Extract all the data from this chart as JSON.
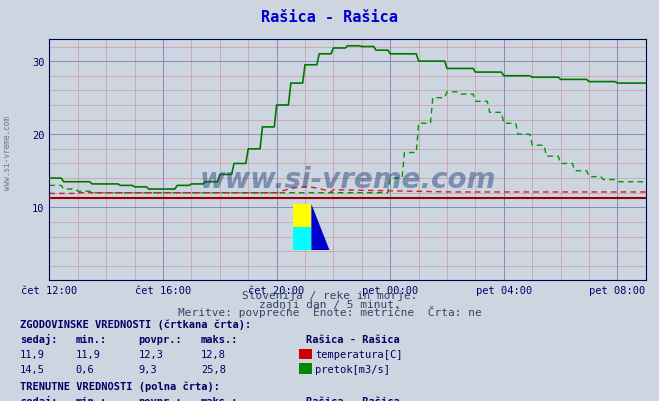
{
  "title": "Rašica - Rašica",
  "title_color": "#0000cc",
  "bg_color": "#ccd5e0",
  "plot_bg_color": "#ccd5e0",
  "xlabel_color": "#000066",
  "xtick_labels": [
    "čet 12:00",
    "čet 16:00",
    "čet 20:00",
    "pet 00:00",
    "pet 04:00",
    "pet 08:00"
  ],
  "xtick_positions": [
    0,
    4,
    8,
    12,
    16,
    20
  ],
  "subtitle_lines": [
    "Slovenija / reke in morje.",
    "zadnji dan / 5 minut.",
    "Meritve: povprečne  Enote: metrične  Črta: ne"
  ],
  "watermark": "www.si-vreme.com",
  "temp_solid_color": "#990000",
  "temp_dashed_color": "#cc2222",
  "flow_solid_color": "#007700",
  "flow_dashed_color": "#009900",
  "sidebar_text": "www.si-vreme.com",
  "table_text_color": "#000066",
  "grid_major_color": "#8888bb",
  "grid_minor_color": "#cc7777"
}
